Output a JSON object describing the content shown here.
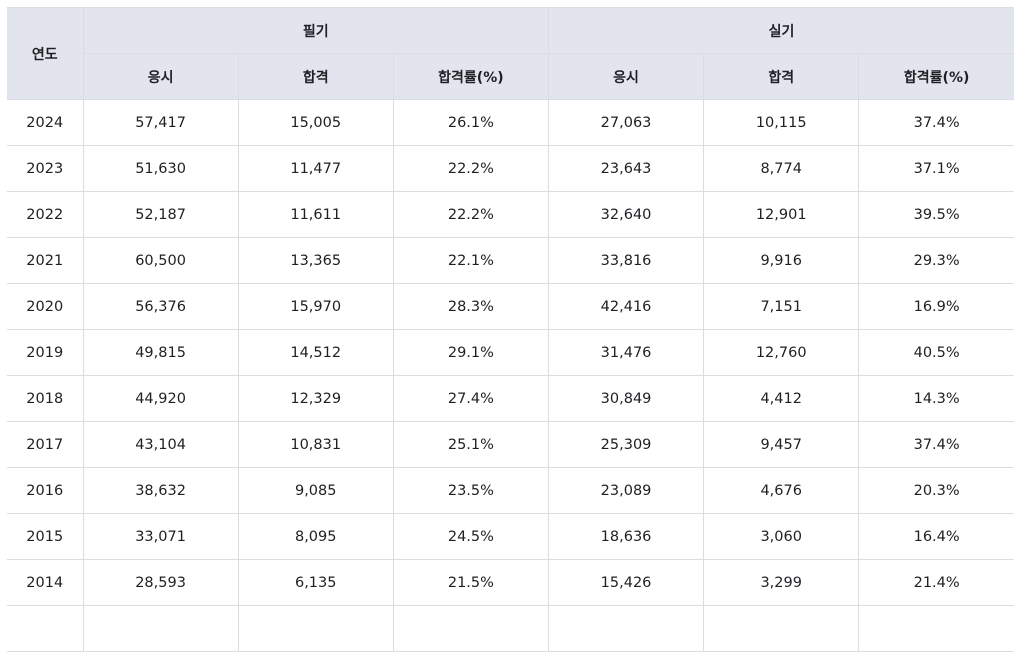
{
  "table": {
    "header": {
      "year": "연도",
      "groups": [
        "필기",
        "실기"
      ],
      "subcolumns": [
        "응시",
        "합격",
        "합격률(%)",
        "응시",
        "합격",
        "합격률(%)"
      ]
    },
    "rows": [
      [
        "2024",
        "57,417",
        "15,005",
        "26.1%",
        "27,063",
        "10,115",
        "37.4%"
      ],
      [
        "2023",
        "51,630",
        "11,477",
        "22.2%",
        "23,643",
        "8,774",
        "37.1%"
      ],
      [
        "2022",
        "52,187",
        "11,611",
        "22.2%",
        "32,640",
        "12,901",
        "39.5%"
      ],
      [
        "2021",
        "60,500",
        "13,365",
        "22.1%",
        "33,816",
        "9,916",
        "29.3%"
      ],
      [
        "2020",
        "56,376",
        "15,970",
        "28.3%",
        "42,416",
        "7,151",
        "16.9%"
      ],
      [
        "2019",
        "49,815",
        "14,512",
        "29.1%",
        "31,476",
        "12,760",
        "40.5%"
      ],
      [
        "2018",
        "44,920",
        "12,329",
        "27.4%",
        "30,849",
        "4,412",
        "14.3%"
      ],
      [
        "2017",
        "43,104",
        "10,831",
        "25.1%",
        "25,309",
        "9,457",
        "37.4%"
      ],
      [
        "2016",
        "38,632",
        "9,085",
        "23.5%",
        "23,089",
        "4,676",
        "20.3%"
      ],
      [
        "2015",
        "33,071",
        "8,095",
        "24.5%",
        "18,636",
        "3,060",
        "16.4%"
      ],
      [
        "2014",
        "28,593",
        "6,135",
        "21.5%",
        "15,426",
        "3,299",
        "21.4%"
      ],
      [
        "",
        "",
        "",
        "",
        "",
        "",
        ""
      ]
    ]
  }
}
